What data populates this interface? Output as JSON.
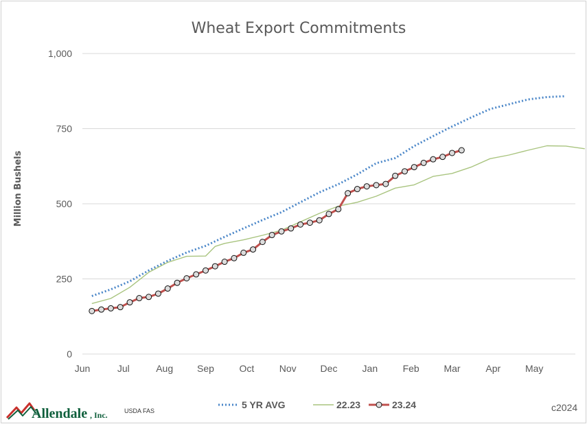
{
  "colors": {
    "avg5": "#4a86c8",
    "y2223": "#a9c47f",
    "y2324": "#c0504d",
    "grid": "#d9d9d9",
    "text": "#595959",
    "logo_green": "#0f5f3c",
    "logo_red": "#c9302c"
  },
  "footer": {
    "logo_main": "Allendale",
    "logo_suffix": ", Inc.",
    "source": "USDA FAS",
    "copyright": "c2024"
  },
  "chart_data": {
    "type": "line",
    "title": "Wheat Export Commitments",
    "xlabel": "",
    "ylabel": "Million Bushels",
    "categories": [
      "Jun",
      "Jul",
      "Aug",
      "Sep",
      "Oct",
      "Nov",
      "Dec",
      "Jan",
      "Feb",
      "Mar",
      "Apr",
      "May"
    ],
    "x_unit": "weeks since start of marketing year",
    "x_range": [
      0,
      52
    ],
    "ylim": [
      0,
      1000
    ],
    "yticks": [
      0,
      250,
      500,
      750,
      1000
    ],
    "ytick_labels": [
      "0",
      "250",
      "500",
      "750",
      "1,000"
    ],
    "grid": true,
    "legend_position": "bottom",
    "series": [
      {
        "name": "5 YR AVG",
        "style": "dotted",
        "x": [
          1,
          3,
          5,
          7,
          9,
          11,
          13,
          15,
          17,
          19,
          21,
          23,
          25,
          27,
          29,
          31,
          33,
          35,
          37,
          39,
          41,
          43,
          45,
          47,
          49,
          51
        ],
        "values": [
          193,
          215,
          242,
          278,
          310,
          338,
          360,
          390,
          418,
          446,
          472,
          505,
          538,
          565,
          598,
          635,
          652,
          692,
          725,
          757,
          787,
          815,
          831,
          847,
          855,
          858
        ]
      },
      {
        "name": "22.23",
        "style": "solid",
        "x": [
          1,
          3,
          5,
          7,
          9,
          11,
          13,
          14,
          15,
          17,
          19,
          21,
          23,
          25,
          27,
          29,
          31,
          33,
          35,
          37,
          39,
          41,
          43,
          45,
          47,
          49,
          51,
          53
        ],
        "values": [
          168,
          185,
          222,
          272,
          305,
          325,
          326,
          358,
          368,
          380,
          395,
          412,
          440,
          468,
          492,
          505,
          525,
          552,
          563,
          591,
          601,
          622,
          650,
          662,
          678,
          693,
          692,
          683
        ]
      },
      {
        "name": "23.24",
        "style": "solid-markers",
        "x": [
          1,
          2,
          3,
          4,
          5,
          6,
          7,
          8,
          9,
          10,
          11,
          12,
          13,
          14,
          15,
          16,
          17,
          18,
          19,
          20,
          21,
          22,
          23,
          24,
          25,
          26,
          27,
          28,
          29,
          30,
          31,
          32,
          33,
          34,
          35,
          36,
          37,
          38,
          39,
          40
        ],
        "values": [
          143,
          148,
          152,
          156,
          172,
          186,
          190,
          201,
          218,
          237,
          252,
          265,
          278,
          292,
          307,
          319,
          337,
          348,
          373,
          396,
          408,
          418,
          431,
          437,
          445,
          466,
          482,
          535,
          549,
          558,
          562,
          566,
          593,
          608,
          622,
          636,
          648,
          656,
          669,
          678
        ]
      }
    ]
  }
}
